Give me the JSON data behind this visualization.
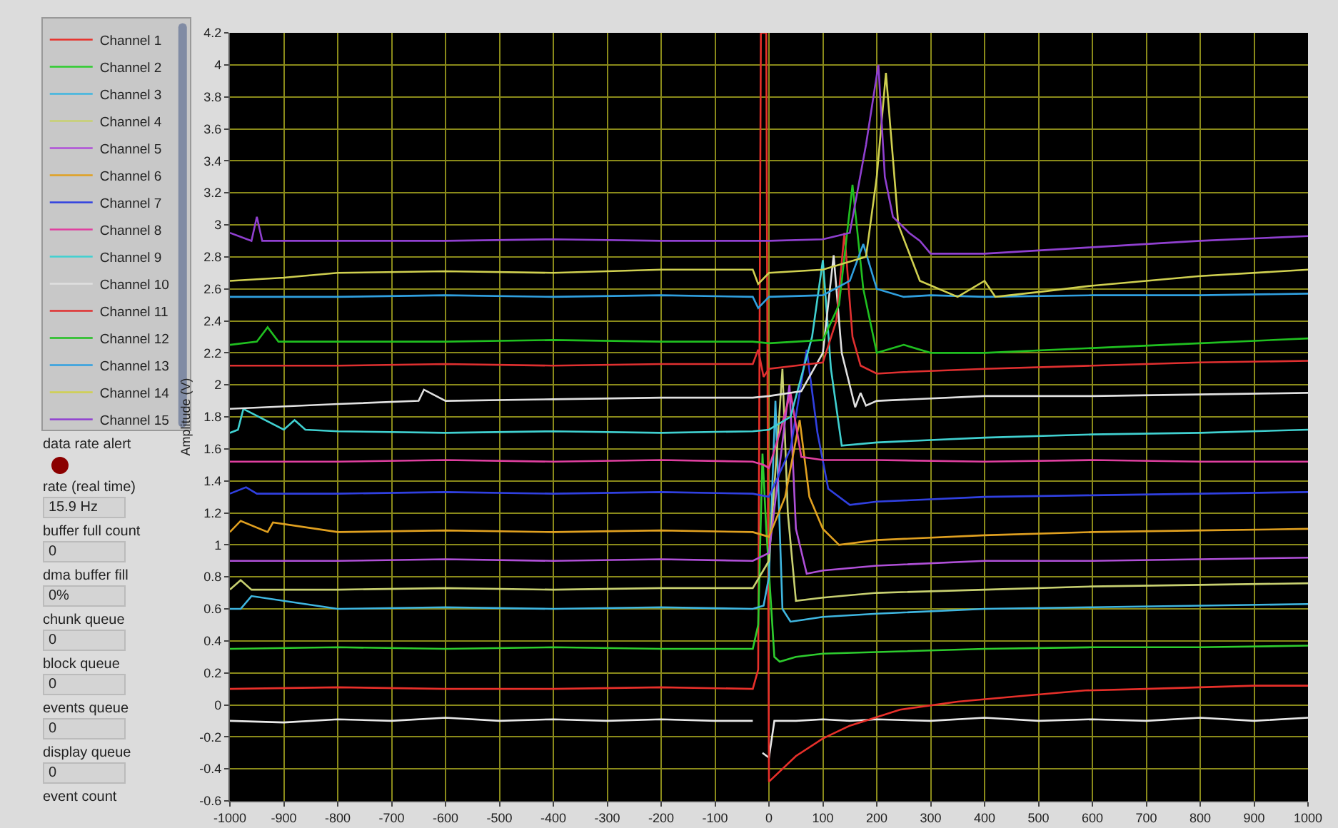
{
  "chart_data": {
    "type": "line",
    "ylabel": "Amplitude (V)",
    "xlim": [
      -1000,
      1000
    ],
    "ylim": [
      -0.6,
      4.2
    ],
    "xticks": [
      -1000,
      -900,
      -800,
      -700,
      -600,
      -500,
      -400,
      -300,
      -200,
      -100,
      0,
      100,
      200,
      300,
      400,
      500,
      600,
      700,
      800,
      900,
      1000
    ],
    "yticks": [
      -0.6,
      -0.4,
      -0.2,
      0,
      0.2,
      0.4,
      0.6,
      0.8,
      1,
      1.2,
      1.4,
      1.6,
      1.8,
      2,
      2.2,
      2.4,
      2.6,
      2.8,
      3,
      3.2,
      3.4,
      3.6,
      3.8,
      4,
      4.2
    ],
    "grid": true,
    "legend": "left",
    "marker": "none",
    "line_style": "solid",
    "annotations": [
      "data rate alert",
      "rate (real time)",
      "15.9 Hz",
      "buffer full count",
      "0",
      "dma buffer fill",
      "0%",
      "chunk queue",
      "0",
      "block queue",
      "0",
      "events queue",
      "0",
      "display queue",
      "0",
      "event count"
    ],
    "series": [
      {
        "color": "#e8e8e8",
        "x": [
          -1000,
          -900,
          -800,
          -700,
          -600,
          -500,
          -400,
          -300,
          -200,
          -100,
          -30,
          -20,
          -12,
          0,
          10,
          50,
          100,
          150,
          200,
          300,
          400,
          500,
          600,
          700,
          800,
          900,
          1000
        ],
        "values": [
          -0.1,
          -0.11,
          -0.09,
          -0.1,
          -0.08,
          -0.1,
          -0.09,
          -0.1,
          -0.09,
          -0.1,
          -0.1,
          null,
          -0.3,
          -0.33,
          -0.1,
          -0.1,
          -0.09,
          -0.1,
          -0.09,
          -0.1,
          -0.08,
          -0.1,
          -0.09,
          -0.1,
          -0.08,
          -0.1,
          -0.08
        ]
      },
      {
        "name": "Channel 1",
        "color": "#e8302a",
        "x": [
          -1000,
          -800,
          -600,
          -400,
          -200,
          -30,
          -20,
          -15,
          -10,
          -5,
          0,
          50,
          100,
          150,
          243,
          350,
          450,
          587,
          700,
          800,
          900,
          1000
        ],
        "values": [
          0.1,
          0.11,
          0.1,
          0.1,
          0.11,
          0.1,
          0.22,
          4.2,
          4.2,
          4.2,
          -0.48,
          -0.32,
          -0.21,
          -0.13,
          -0.03,
          0.02,
          0.05,
          0.09,
          0.1,
          0.11,
          0.12,
          0.12
        ]
      },
      {
        "name": "Channel 2",
        "color": "#2ecc2e",
        "x": [
          -1000,
          -800,
          -600,
          -400,
          -200,
          -30,
          -20,
          -12,
          -5,
          10,
          20,
          50,
          100,
          200,
          400,
          600,
          800,
          1000
        ],
        "values": [
          0.35,
          0.36,
          0.35,
          0.36,
          0.35,
          0.35,
          0.5,
          1.57,
          1.1,
          0.3,
          0.27,
          0.3,
          0.32,
          0.33,
          0.35,
          0.36,
          0.36,
          0.37
        ]
      },
      {
        "name": "Channel 3",
        "color": "#3fb6e0",
        "x": [
          -1000,
          -980,
          -960,
          -800,
          -600,
          -400,
          -200,
          -30,
          -10,
          0,
          12,
          25,
          40,
          60,
          100,
          200,
          400,
          600,
          800,
          1000
        ],
        "values": [
          0.6,
          0.6,
          0.68,
          0.6,
          0.61,
          0.6,
          0.61,
          0.6,
          0.62,
          0.8,
          1.9,
          0.6,
          0.52,
          0.53,
          0.55,
          0.57,
          0.6,
          0.61,
          0.62,
          0.63
        ]
      },
      {
        "name": "Channel 4",
        "color": "#c8d070",
        "x": [
          -1000,
          -980,
          -960,
          -800,
          -600,
          -400,
          -200,
          -30,
          0,
          15,
          25,
          35,
          50,
          100,
          200,
          400,
          600,
          800,
          1000
        ],
        "values": [
          0.72,
          0.78,
          0.72,
          0.72,
          0.73,
          0.72,
          0.73,
          0.73,
          0.9,
          1.6,
          2.1,
          1.2,
          0.65,
          0.67,
          0.7,
          0.72,
          0.74,
          0.75,
          0.76
        ]
      },
      {
        "name": "Channel 5",
        "color": "#b050d8",
        "x": [
          -1000,
          -800,
          -600,
          -400,
          -200,
          -30,
          0,
          20,
          38,
          50,
          70,
          100,
          200,
          400,
          600,
          800,
          1000
        ],
        "values": [
          0.9,
          0.9,
          0.91,
          0.9,
          0.91,
          0.9,
          0.95,
          1.5,
          2,
          1.1,
          0.82,
          0.84,
          0.87,
          0.9,
          0.9,
          0.91,
          0.92
        ]
      },
      {
        "name": "Channel 6",
        "color": "#e0a020",
        "x": [
          -1000,
          -980,
          -930,
          -920,
          -800,
          -600,
          -400,
          -200,
          -30,
          0,
          30,
          57,
          75,
          100,
          130,
          200,
          400,
          600,
          800,
          1000
        ],
        "values": [
          1.08,
          1.15,
          1.08,
          1.14,
          1.08,
          1.09,
          1.08,
          1.09,
          1.08,
          1.05,
          1.3,
          1.78,
          1.3,
          1.1,
          1,
          1.03,
          1.06,
          1.08,
          1.09,
          1.1
        ]
      },
      {
        "name": "Channel 7",
        "color": "#3040e0",
        "x": [
          -1000,
          -970,
          -950,
          -800,
          -600,
          -400,
          -200,
          -30,
          0,
          40,
          70,
          90,
          110,
          150,
          200,
          400,
          600,
          800,
          1000
        ],
        "values": [
          1.32,
          1.36,
          1.32,
          1.32,
          1.33,
          1.32,
          1.33,
          1.32,
          1.3,
          1.6,
          2.22,
          1.7,
          1.35,
          1.25,
          1.27,
          1.3,
          1.31,
          1.32,
          1.33
        ]
      },
      {
        "name": "Channel 8",
        "color": "#e040a0",
        "x": [
          -1000,
          -800,
          -600,
          -400,
          -200,
          -30,
          -10,
          0,
          20,
          40,
          60,
          100,
          200,
          400,
          600,
          800,
          1000
        ],
        "values": [
          1.52,
          1.52,
          1.53,
          1.52,
          1.53,
          1.52,
          1.5,
          1.48,
          1.7,
          1.95,
          1.55,
          1.53,
          1.53,
          1.52,
          1.53,
          1.52,
          1.52
        ]
      },
      {
        "name": "Channel 9",
        "color": "#40d0d0",
        "x": [
          -1000,
          -985,
          -975,
          -900,
          -880,
          -860,
          -800,
          -600,
          -400,
          -200,
          -30,
          0,
          40,
          80,
          100,
          115,
          135,
          200,
          400,
          600,
          800,
          1000
        ],
        "values": [
          1.7,
          1.72,
          1.85,
          1.72,
          1.78,
          1.72,
          1.71,
          1.7,
          1.71,
          1.7,
          1.71,
          1.72,
          1.8,
          2.3,
          2.78,
          2.1,
          1.62,
          1.64,
          1.67,
          1.69,
          1.7,
          1.72
        ]
      },
      {
        "name": "Channel 10",
        "color": "#e0e0e0",
        "x": [
          -1000,
          -800,
          -650,
          -640,
          -600,
          -400,
          -200,
          -30,
          0,
          60,
          100,
          120,
          135,
          160,
          170,
          180,
          200,
          400,
          600,
          800,
          1000
        ],
        "values": [
          1.85,
          1.88,
          1.9,
          1.97,
          1.9,
          1.91,
          1.92,
          1.92,
          1.93,
          1.96,
          2.2,
          2.81,
          2.2,
          1.86,
          1.95,
          1.87,
          1.9,
          1.93,
          1.93,
          1.94,
          1.95
        ]
      },
      {
        "name": "Channel 11",
        "color": "#e03030",
        "x": [
          -1000,
          -800,
          -600,
          -400,
          -200,
          -30,
          -20,
          -10,
          0,
          50,
          100,
          125,
          140,
          155,
          170,
          200,
          250,
          400,
          600,
          800,
          1000
        ],
        "values": [
          2.12,
          2.12,
          2.13,
          2.12,
          2.13,
          2.13,
          2.22,
          2.05,
          2.1,
          2.12,
          2.14,
          2.4,
          2.95,
          2.3,
          2.12,
          2.07,
          2.08,
          2.1,
          2.12,
          2.14,
          2.15
        ]
      },
      {
        "name": "Channel 12",
        "color": "#20c020",
        "x": [
          -1000,
          -950,
          -930,
          -910,
          -800,
          -600,
          -400,
          -200,
          -30,
          0,
          100,
          130,
          155,
          175,
          200,
          250,
          300,
          400,
          600,
          800,
          1000
        ],
        "values": [
          2.25,
          2.27,
          2.36,
          2.27,
          2.27,
          2.27,
          2.28,
          2.27,
          2.27,
          2.26,
          2.28,
          2.5,
          3.25,
          2.6,
          2.2,
          2.25,
          2.2,
          2.2,
          2.23,
          2.26,
          2.29
        ]
      },
      {
        "name": "Channel 13",
        "color": "#30a0e0",
        "x": [
          -1000,
          -800,
          -600,
          -400,
          -200,
          -30,
          -20,
          0,
          100,
          150,
          175,
          200,
          250,
          300,
          400,
          600,
          800,
          1000
        ],
        "values": [
          2.55,
          2.55,
          2.56,
          2.55,
          2.56,
          2.55,
          2.48,
          2.55,
          2.56,
          2.65,
          2.88,
          2.6,
          2.55,
          2.56,
          2.55,
          2.56,
          2.56,
          2.57
        ]
      },
      {
        "name": "Channel 14",
        "color": "#d0d050",
        "x": [
          -1000,
          -900,
          -800,
          -600,
          -400,
          -200,
          -30,
          -20,
          0,
          100,
          180,
          200,
          217,
          240,
          280,
          350,
          400,
          420,
          500,
          600,
          800,
          1000
        ],
        "values": [
          2.65,
          2.67,
          2.7,
          2.71,
          2.7,
          2.72,
          2.72,
          2.63,
          2.7,
          2.72,
          2.8,
          3.3,
          3.95,
          3,
          2.65,
          2.55,
          2.65,
          2.55,
          2.58,
          2.62,
          2.68,
          2.72
        ]
      },
      {
        "name": "Channel 15",
        "color": "#9040d0",
        "x": [
          -1000,
          -960,
          -950,
          -940,
          -800,
          -600,
          -400,
          -200,
          0,
          100,
          150,
          180,
          203,
          215,
          230,
          260,
          280,
          300,
          400,
          600,
          800,
          1000
        ],
        "values": [
          2.95,
          2.9,
          3.05,
          2.9,
          2.9,
          2.9,
          2.91,
          2.9,
          2.9,
          2.91,
          2.95,
          3.5,
          4,
          3.3,
          3.05,
          2.95,
          2.9,
          2.82,
          2.82,
          2.86,
          2.9,
          2.93
        ]
      }
    ]
  }
}
